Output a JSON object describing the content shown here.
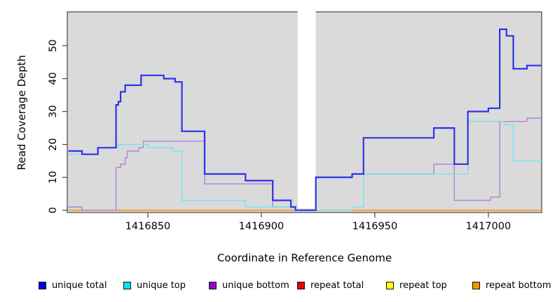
{
  "chart_data": {
    "type": "line",
    "subtype": "step-coverage-pileup",
    "title": "",
    "xlabel": "Coordinate in Reference Genome",
    "ylabel": "Read Coverage Depth",
    "xlim": [
      1416815,
      1417023
    ],
    "ylim": [
      0,
      60
    ],
    "x_ticks": [
      1416850,
      1416900,
      1416950,
      1417000
    ],
    "y_ticks": [
      0,
      10,
      20,
      30,
      40,
      50
    ],
    "grid": false,
    "legend_position": "bottom",
    "panel_bg": "#DADADA",
    "frame_color": "#454545",
    "masked_region": {
      "from": 1416916,
      "to": 1416924,
      "color": "#FFFFFF"
    },
    "series": [
      {
        "name": "repeat total",
        "line_color": "#EE0000",
        "swatch_color": "#EE0000",
        "width": 1.4,
        "points": [
          [
            1416815,
            0
          ]
        ]
      },
      {
        "name": "repeat top",
        "line_color": "#FFFF00",
        "swatch_color": "#FFFF00",
        "width": 1.4,
        "points": [
          [
            1416815,
            0
          ]
        ]
      },
      {
        "name": "repeat bottom",
        "line_color": "#FF9505",
        "swatch_color": "#F59400",
        "width": 1.6,
        "points": [
          [
            1416815,
            0
          ]
        ]
      },
      {
        "name": "unique bottom",
        "line_color": "#B27FD9",
        "swatch_color": "#9A00CC",
        "width": 1.4,
        "points": [
          [
            1416815,
            1
          ],
          [
            1416821,
            0
          ],
          [
            1416836,
            13
          ],
          [
            1416838,
            14
          ],
          [
            1416840,
            16
          ],
          [
            1416841,
            18
          ],
          [
            1416846,
            19
          ],
          [
            1416848,
            21
          ],
          [
            1416875,
            8
          ],
          [
            1416905,
            1
          ],
          [
            1416915,
            0
          ],
          [
            1416924,
            10
          ],
          [
            1416940,
            11
          ],
          [
            1416976,
            14
          ],
          [
            1416985,
            3
          ],
          [
            1417001,
            4
          ],
          [
            1417005,
            27
          ],
          [
            1417017,
            28
          ]
        ]
      },
      {
        "name": "unique top",
        "line_color": "#6FE6EC",
        "swatch_color": "#00E5EE",
        "width": 1.4,
        "points": [
          [
            1416815,
            17
          ],
          [
            1416828,
            19
          ],
          [
            1416837,
            20
          ],
          [
            1416850,
            19
          ],
          [
            1416861,
            18
          ],
          [
            1416865,
            3
          ],
          [
            1416893,
            1
          ],
          [
            1416914,
            0
          ],
          [
            1416940,
            1
          ],
          [
            1416945,
            11
          ],
          [
            1416991,
            27
          ],
          [
            1417007,
            26
          ],
          [
            1417011,
            15
          ]
        ]
      },
      {
        "name": "unique total",
        "line_color": "#3030EC",
        "swatch_color": "#0000EE",
        "width": 2.2,
        "points": [
          [
            1416815,
            18
          ],
          [
            1416821,
            17
          ],
          [
            1416828,
            19
          ],
          [
            1416836,
            32
          ],
          [
            1416837,
            33
          ],
          [
            1416838,
            36
          ],
          [
            1416840,
            38
          ],
          [
            1416847,
            41
          ],
          [
            1416857,
            40
          ],
          [
            1416862,
            39
          ],
          [
            1416865,
            24
          ],
          [
            1416875,
            11
          ],
          [
            1416893,
            9
          ],
          [
            1416905,
            3
          ],
          [
            1416913,
            1
          ],
          [
            1416915,
            0
          ],
          [
            1416924,
            10
          ],
          [
            1416940,
            11
          ],
          [
            1416945,
            22
          ],
          [
            1416976,
            25
          ],
          [
            1416985,
            14
          ],
          [
            1416991,
            30
          ],
          [
            1417000,
            31
          ],
          [
            1417005,
            55
          ],
          [
            1417008,
            53
          ],
          [
            1417011,
            43
          ],
          [
            1417017,
            44
          ]
        ]
      }
    ],
    "legend": [
      {
        "label": "unique total",
        "color": "#0000EE"
      },
      {
        "label": "unique top",
        "color": "#00E5EE"
      },
      {
        "label": "unique bottom",
        "color": "#9A00CC"
      },
      {
        "label": "repeat total",
        "color": "#EE0000"
      },
      {
        "label": "repeat top",
        "color": "#FFFF00"
      },
      {
        "label": "repeat bottom",
        "color": "#F59400"
      }
    ]
  }
}
